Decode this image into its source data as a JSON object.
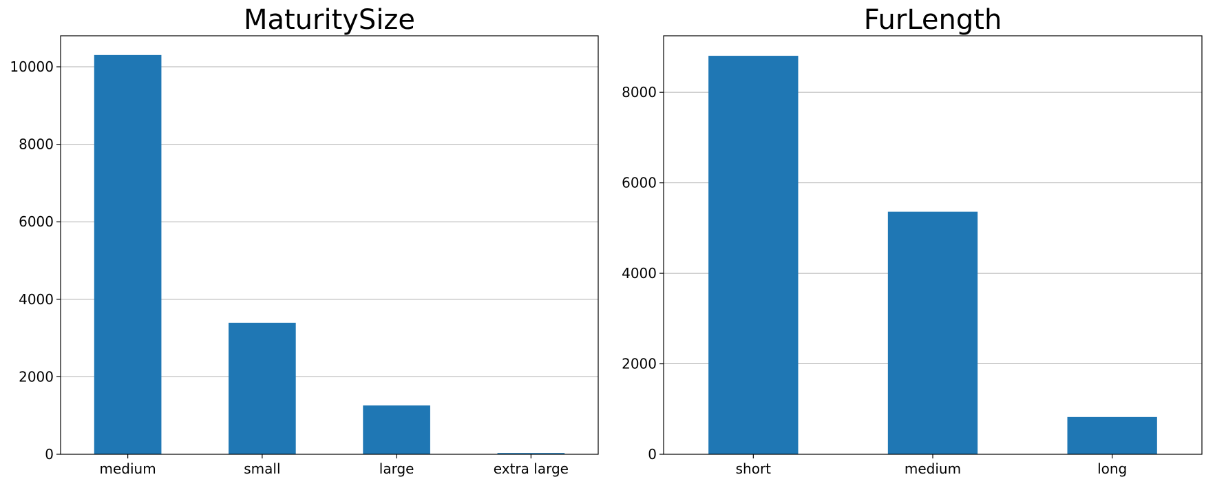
{
  "chart_data": [
    {
      "type": "bar",
      "title": "MaturitySize",
      "xlabel": "",
      "ylabel": "",
      "categories": [
        "medium",
        "small",
        "large",
        "extra large"
      ],
      "values": [
        10305,
        3395,
        1260,
        33
      ],
      "ylim": [
        0,
        10800
      ],
      "yticks": [
        0,
        2000,
        4000,
        6000,
        8000,
        10000
      ],
      "ytick_labels": [
        "0",
        "2000",
        "4000",
        "6000",
        "8000",
        "10000"
      ],
      "grid": "y",
      "legend": "none",
      "bar_color": "#1f77b4"
    },
    {
      "type": "bar",
      "title": "FurLength",
      "xlabel": "",
      "ylabel": "",
      "categories": [
        "short",
        "medium",
        "long"
      ],
      "values": [
        8808,
        5361,
        824
      ],
      "ylim": [
        0,
        9250
      ],
      "yticks": [
        0,
        2000,
        4000,
        6000,
        8000
      ],
      "ytick_labels": [
        "0",
        "2000",
        "4000",
        "6000",
        "8000"
      ],
      "grid": "y",
      "legend": "none",
      "bar_color": "#1f77b4"
    }
  ]
}
